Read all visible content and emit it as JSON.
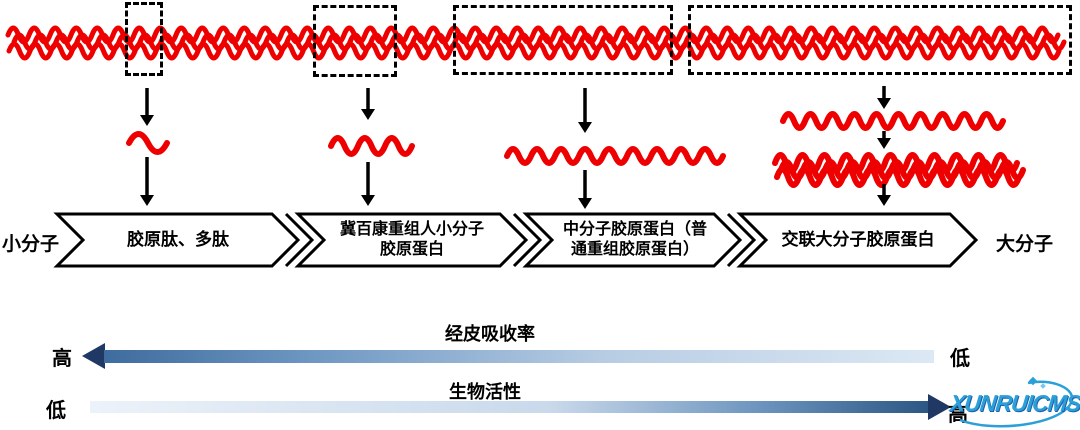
{
  "molecule_scale": {
    "left_label": "小分子",
    "right_label": "大分子",
    "banners": [
      {
        "label": "胶原肽、多肽"
      },
      {
        "label": "冀百康重组人小分子胶原蛋白"
      },
      {
        "label": "中分子胶原蛋白（普通重组胶原蛋白）"
      },
      {
        "label": "交联大分子胶原蛋白"
      }
    ]
  },
  "gradient_axes": [
    {
      "title": "经皮吸收率",
      "left_end_label": "高",
      "right_end_label": "低",
      "arrow_direction": "left"
    },
    {
      "title": "生物活性",
      "left_end_label": "低",
      "right_end_label": "高",
      "arrow_direction": "right"
    }
  ],
  "watermark": {
    "text": "XUNRUICMS"
  },
  "colors": {
    "strand_red": "#EE0000",
    "outline_black": "#000000",
    "arrowhead_navy": "#1F3864",
    "axis1_gradient_start": "#3E6C9E",
    "axis1_gradient_end": "#DCE8F4",
    "axis2_gradient_start": "#ECF2F9",
    "axis2_gradient_end": "#2C5784",
    "watermark_blue": "#2BA0D8"
  }
}
